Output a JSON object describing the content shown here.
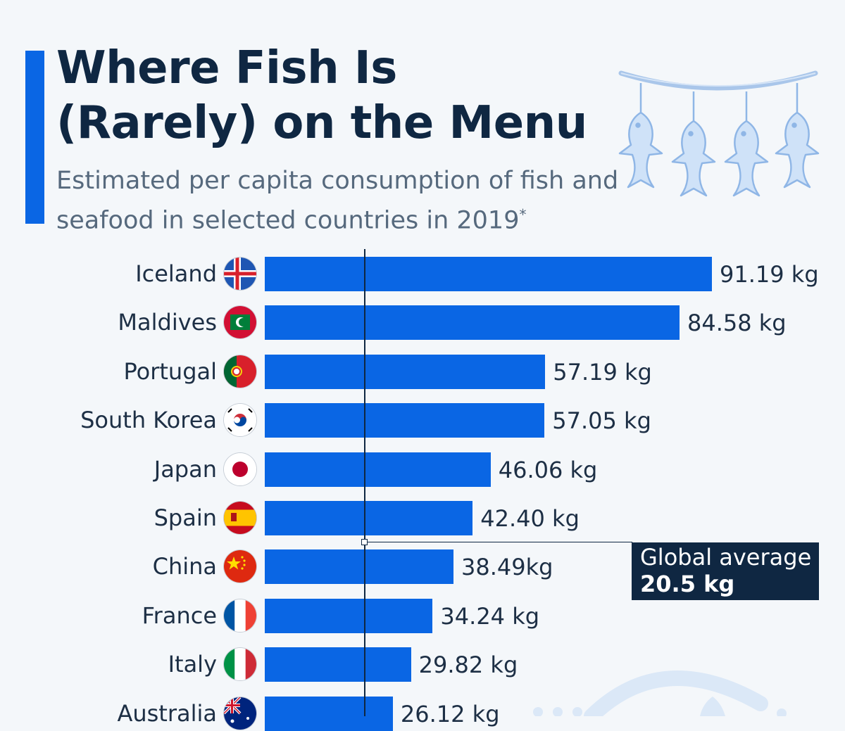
{
  "title": "Where Fish Is (Rarely) on the Menu",
  "subtitle": "Estimated per capita consumption of fish and seafood in selected countries in 2019",
  "subtitle_footnote_mark": "*",
  "colors": {
    "accent": "#0a66e4",
    "dark": "#0f2742",
    "background": "#f4f7fa"
  },
  "illustration": "hanging-fish-icon",
  "chart_data": {
    "type": "bar",
    "orientation": "horizontal",
    "categories": [
      "Iceland",
      "Maldives",
      "Portugal",
      "South Korea",
      "Japan",
      "Spain",
      "China",
      "France",
      "Italy",
      "Australia"
    ],
    "values": [
      91.19,
      84.58,
      57.19,
      57.05,
      46.06,
      42.4,
      38.49,
      34.24,
      29.82,
      26.12
    ],
    "value_labels": [
      "91.19 kg",
      "84.58 kg",
      "57.19 kg",
      "57.05 kg",
      "46.06 kg",
      "42.40 kg",
      "38.49kg",
      "34.24 kg",
      "29.82 kg",
      "26.12 kg"
    ],
    "flags": [
      "iceland-flag-icon",
      "maldives-flag-icon",
      "portugal-flag-icon",
      "south-korea-flag-icon",
      "japan-flag-icon",
      "spain-flag-icon",
      "china-flag-icon",
      "france-flag-icon",
      "italy-flag-icon",
      "australia-flag-icon"
    ],
    "bar_color": "#0a66e4",
    "reference_line": {
      "value": 20.5,
      "label": "Global average",
      "value_label": "20.5 kg"
    },
    "xlim": [
      0,
      91.19
    ],
    "title": "Where Fish Is (Rarely) on the Menu",
    "xlabel": "",
    "ylabel": "",
    "grid": false,
    "legend": "none"
  }
}
